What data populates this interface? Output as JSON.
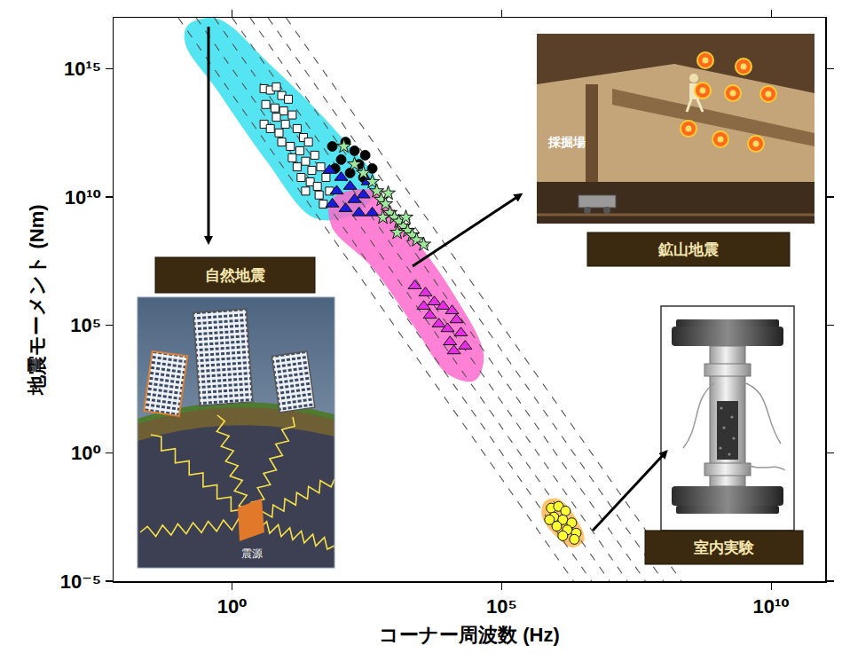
{
  "chart_data": {
    "type": "scatter",
    "x_label": "コーナー周波数 (Hz)",
    "y_label": "地震モーメント (Nm)",
    "log": true,
    "grid": false,
    "xlim": [
      0.0063,
      100000000000.0
    ],
    "ylim": [
      1e-05,
      1e+17
    ],
    "xticks": [
      {
        "value": 1,
        "label": "10⁰"
      },
      {
        "value": 100000,
        "label": "10⁵"
      },
      {
        "value": 10000000000.0,
        "label": "10¹⁰"
      }
    ],
    "yticks": [
      {
        "value": 1e-05,
        "label": "10⁻⁵"
      },
      {
        "value": 1,
        "label": "10⁰"
      },
      {
        "value": 100000,
        "label": "10⁵"
      },
      {
        "value": 10000000000.0,
        "label": "10¹⁰"
      },
      {
        "value": 1000000000000000.0,
        "label": "10¹⁵"
      }
    ],
    "annotations": [
      "自然地震",
      "鉱山地震",
      "室内実験",
      "採掘場",
      "震源"
    ],
    "series": [
      {
        "type": "area",
        "color": "#30e0f0",
        "x": [
          0.151,
          0.52,
          4.3,
          87,
          480,
          186,
          34,
          4.3,
          0.52,
          0.14
        ],
        "values": [
          4.7e+16,
          8.7e+16,
          1900000000000000.0,
          3200000000000.0,
          26000000000.0,
          2400000000.0,
          1600000000.0,
          290000000000.0,
          170000000000000.0,
          9300000000000000.0
        ]
      },
      {
        "type": "area",
        "color": "#ff66cc",
        "x": [
          72,
          400,
          1800,
          12000,
          45000,
          31000,
          10000,
          2600,
          400,
          72
        ],
        "values": [
          7900000000.0,
          17000000000.0,
          480000000.0,
          1800000.0,
          6600,
          710,
          1300,
          72000,
          19000000.0,
          710000000.0
        ]
      },
      {
        "type": "area",
        "color": "#ffb84d",
        "x": [
          640000,
          1100000,
          2400000,
          3300000,
          2000000,
          930000,
          570000
        ],
        "values": [
          0.0123,
          0.0155,
          0.0025,
          0.0004,
          0.00022,
          0.00074,
          0.0037
        ]
      },
      {
        "type": "line",
        "line_style": "dashed",
        "color": "#555555",
        "x": [
          0.1,
          2150000
        ],
        "values": [
          1e+17,
          1e-05
        ]
      },
      {
        "type": "line",
        "line_style": "dashed",
        "color": "#555555",
        "x": [
          0.215,
          4640000
        ],
        "values": [
          1e+17,
          1e-05
        ]
      },
      {
        "type": "line",
        "line_style": "dashed",
        "color": "#555555",
        "x": [
          0.464,
          10000000
        ],
        "values": [
          1e+17,
          1e-05
        ]
      },
      {
        "type": "line",
        "line_style": "dashed",
        "color": "#555555",
        "x": [
          1,
          21500000
        ],
        "values": [
          1e+17,
          1e-05
        ]
      },
      {
        "type": "line",
        "line_style": "dashed",
        "color": "#555555",
        "x": [
          2.15,
          46400000
        ],
        "values": [
          1e+17,
          1e-05
        ]
      },
      {
        "type": "line",
        "line_style": "dashed",
        "color": "#555555",
        "x": [
          4.64,
          100000000
        ],
        "values": [
          1e+17,
          1e-05
        ]
      },
      {
        "type": "line",
        "line_style": "dashed",
        "color": "#555555",
        "x": [
          10,
          215000000
        ],
        "values": [
          1e+17,
          1e-05
        ]
      },
      {
        "type": "scatter",
        "marker": "square",
        "color": "#ffffff",
        "x": [
          3.9,
          5.1,
          6.6,
          8.3,
          11,
          4.2,
          6.2,
          9.0,
          13,
          3.9,
          5.1,
          7.4,
          9.7,
          16,
          21,
          8.3,
          12,
          18,
          26,
          34,
          23,
          16,
          30,
          44,
          19,
          28,
          38,
          55,
          23,
          41,
          64,
          13,
          6.6,
          49
        ],
        "values": [
          170000000000000.0,
          150000000000000.0,
          200000000000000.0,
          92000000000000.0,
          66000000000000.0,
          41000000000000.0,
          30000000000000.0,
          23000000000000.0,
          16000000000000.0,
          7000000000000.0,
          4700000000000.0,
          3200000000000.0,
          7000000000000.0,
          4700000000000.0,
          2100000000000.0,
          1400000000000.0,
          950000000000.0,
          640000000000.0,
          1400000000000.0,
          430000000000.0,
          250000000000.0,
          150000000000.0,
          110000000000.0,
          150000000000.0,
          58000000000.0,
          39000000000.0,
          26000000000.0,
          58000000000.0,
          17000000000.0,
          12000000000.0,
          17000000000.0,
          340000000000.0,
          13000000000000.0,
          5300000000.0
        ]
      },
      {
        "type": "scatter",
        "marker": "circle",
        "color": "#000000",
        "x": [
          72,
          127,
          186,
          105,
          225,
          154,
          272,
          81,
          293,
          397
        ],
        "values": [
          950000000000.0,
          1400000000000.0,
          640000000000.0,
          290000000000.0,
          190000000000.0,
          87000000000.0,
          58000000000.0,
          130000000000.0,
          430000000000.0,
          130000000000.0
        ]
      },
      {
        "type": "scatter",
        "marker": "triangle",
        "color": "#1a1adb",
        "x": [
          64,
          105,
          87,
          154,
          186,
          272,
          127,
          225,
          328,
          72,
          397
        ],
        "values": [
          110000000000.0,
          58000000000.0,
          17000000000.0,
          26000000000.0,
          7900000000.0,
          12000000000.0,
          3500000000.0,
          2400000000.0,
          39000000000.0,
          5300000000.0,
          2400000000.0
        ]
      },
      {
        "type": "scatter",
        "marker": "star",
        "color": "#9ee89e",
        "x": [
          118,
          186,
          272,
          397,
          480,
          580,
          700,
          846,
          1020,
          1240,
          1490,
          1800,
          2180,
          2640,
          3570,
          625,
          1150,
          785,
          1670
        ],
        "values": [
          950000000000.0,
          190000000000.0,
          87000000000.0,
          39000000000.0,
          17000000000.0,
          7900000000.0,
          5300000000.0,
          2400000000.0,
          1600000000.0,
          1100000000.0,
          710000000.0,
          480000000.0,
          320000000.0,
          210000000.0,
          140000000.0,
          1600000000.0,
          410000000.0,
          14000000000.0,
          1600000000.0
        ]
      },
      {
        "type": "scatter",
        "marker": "triangle",
        "color": "#e62ee6",
        "x": [
          2440,
          3850,
          5620,
          4650,
          8200,
          12000,
          6800,
          9900,
          14500,
          17500,
          11000,
          21000,
          13000,
          3570
        ],
        "values": [
          3400000.0,
          1800000.0,
          800000,
          240000,
          540000,
          360000,
          110000,
          72000,
          160000,
          49000,
          22000,
          15000,
          9800,
          540000
        ]
      },
      {
        "type": "scatter",
        "marker": "circle",
        "color": "#ffff33",
        "x": [
          830000,
          1130000,
          1530000,
          930000,
          1360000,
          1990000,
          1050000,
          1650000,
          2410000,
          1360000,
          2230000,
          770000
        ],
        "values": [
          0.0071,
          0.0083,
          0.0055,
          0.0032,
          0.0025,
          0.0019,
          0.0014,
          0.001,
          0.00075,
          0.00059,
          0.00043,
          0.0025
        ]
      }
    ]
  }
}
